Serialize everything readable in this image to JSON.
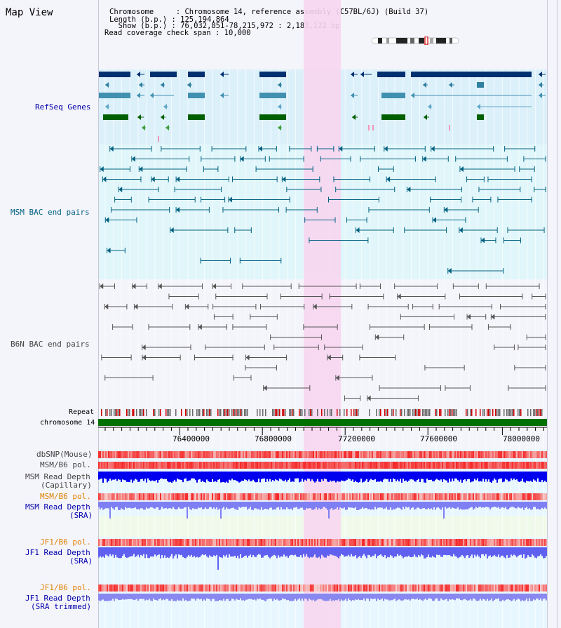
{
  "header": {
    "title": "Map View",
    "info_lines": [
      "Chromosome     : Chromosome 14, reference assembly (C57BL/6J) (Build 37)",
      "Length (b.p.) : 125,194,864",
      "  Show (b.p.) : 76,032,851-78,215,972 : 2,183,122 bp",
      "Read coverage check span : 10,000"
    ]
  },
  "tracks": {
    "refseq": {
      "label": "RefSeq Genes",
      "color": "#0000aa"
    },
    "msm_bac": {
      "label": "MSM BAC end pairs",
      "color": "#006080"
    },
    "b6n_bac": {
      "label": "B6N BAC end pairs",
      "color": "#444444"
    },
    "repeat": {
      "label": "Repeat"
    },
    "chromosome": {
      "label": "chromosome 14"
    },
    "dbsnp": {
      "label": "dbSNP(Mouse)"
    },
    "msm_b6_pol_1": {
      "label": "MSM/B6 pol."
    },
    "msm_depth_cap": {
      "label_1": "MSM Read Depth",
      "label_2": "(Capillary)"
    },
    "msm_b6_pol_2": {
      "label": "MSM/B6 pol.",
      "color": "#e08000"
    },
    "msm_depth_sra": {
      "label_1": "MSM Read Depth",
      "label_2": "(SRA)",
      "color": "#0000aa"
    },
    "jf1_b6_pol_1": {
      "label": "JF1/B6 pol.",
      "color": "#e08000"
    },
    "jf1_depth_sra": {
      "label_1": "JF1 Read Depth",
      "label_2": "(SRA)",
      "color": "#0000aa"
    },
    "jf1_b6_pol_2": {
      "label": "JF1/B6 pol.",
      "color": "#e08000"
    },
    "jf1_depth_trim": {
      "label_1": "JF1 Read Depth",
      "label_2": "(SRA trimmed)",
      "color": "#0000aa"
    }
  },
  "axis": {
    "ticks": [
      "76400000",
      "76800000",
      "77200000",
      "77600000",
      "78000000"
    ]
  },
  "colors": {
    "highlight": "#f7d6f0",
    "refseq_bg": "#dcf0fa",
    "msm_bg": "#e0f6fa",
    "b6n_bg": "#f4f4f8",
    "chrom_bar": "#007000",
    "depth_dark": "#0000ee",
    "depth_light": "#7f7ff4",
    "pol_red": "#ee3030"
  }
}
